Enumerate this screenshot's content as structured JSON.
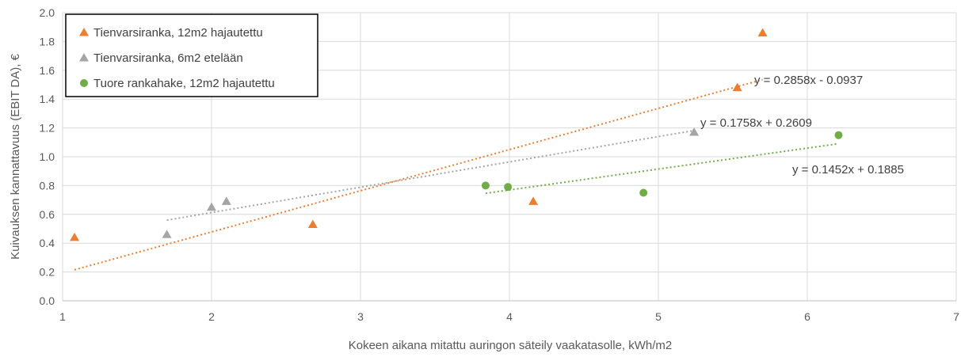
{
  "chart_data": {
    "type": "scatter",
    "xlabel": "Kokeen aikana mitattu auringon säteily vaakatasolle, kWh/m2",
    "ylabel": "Kuivauksen kannattavuus (EBIT DA), €",
    "xlim": [
      1,
      7
    ],
    "ylim": [
      0,
      2.0
    ],
    "x_ticks": [
      "1",
      "2",
      "3",
      "4",
      "5",
      "6",
      "7"
    ],
    "y_ticks": [
      "0.0",
      "0.2",
      "0.4",
      "0.6",
      "0.8",
      "1.0",
      "1.2",
      "1.4",
      "1.6",
      "1.8",
      "2.0"
    ],
    "grid": true,
    "legend_position": "top-left",
    "series": [
      {
        "name": "Tienvarsiranka, 12m2 hajautettu",
        "marker": "triangle",
        "color": "#ED7D31",
        "points": [
          [
            1.08,
            0.44
          ],
          [
            2.68,
            0.53
          ],
          [
            4.16,
            0.69
          ],
          [
            5.53,
            1.48
          ],
          [
            5.7,
            1.86
          ]
        ],
        "trendline": {
          "slope": 0.2858,
          "intercept": -0.0937,
          "x_range": [
            1.08,
            5.7
          ],
          "label": "y = 0.2858x - 0.0937"
        }
      },
      {
        "name": "Tienvarsiranka, 6m2 etelään",
        "marker": "triangle",
        "color": "#A5A5A5",
        "points": [
          [
            1.7,
            0.46
          ],
          [
            2.0,
            0.65
          ],
          [
            2.1,
            0.69
          ],
          [
            5.24,
            1.17
          ]
        ],
        "trendline": {
          "slope": 0.1758,
          "intercept": 0.2609,
          "x_range": [
            1.7,
            5.24
          ],
          "label": "y = 0.1758x + 0.2609"
        }
      },
      {
        "name": "Tuore rankahake, 12m2 hajautettu",
        "marker": "circle",
        "color": "#70AD47",
        "points": [
          [
            3.84,
            0.8
          ],
          [
            3.99,
            0.79
          ],
          [
            4.9,
            0.75
          ],
          [
            6.21,
            1.15
          ]
        ],
        "trendline": {
          "slope": 0.1452,
          "intercept": 0.1885,
          "x_range": [
            3.84,
            6.21
          ],
          "label": "y = 0.1452x + 0.1885"
        }
      }
    ]
  }
}
